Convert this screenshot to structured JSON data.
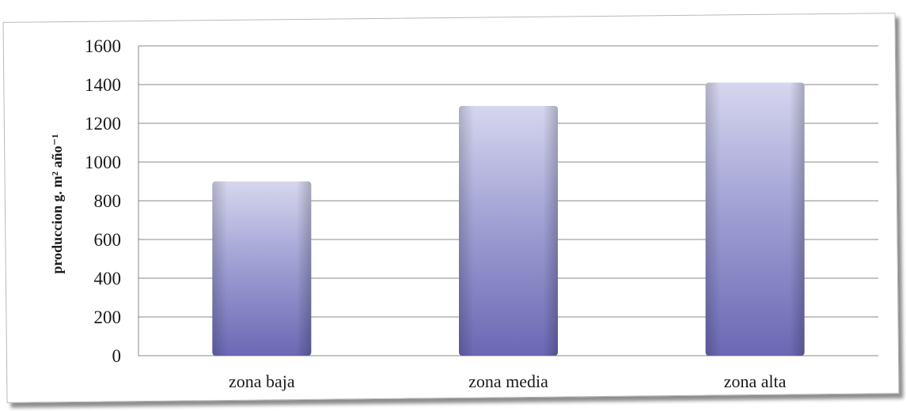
{
  "chart_data": {
    "type": "bar",
    "categories": [
      "zona baja",
      "zona media",
      "zona alta"
    ],
    "values": [
      900,
      1290,
      1410
    ],
    "ylabel": "produccion g. m² año⁻¹",
    "ylim": [
      0,
      1600
    ],
    "yticks": [
      0,
      200,
      400,
      600,
      800,
      1000,
      1200,
      1400,
      1600
    ],
    "grid": true,
    "legend": "none",
    "colors": {
      "bar_top": "#d6d6ef",
      "bar_mid": "#9c9cd2",
      "bar_bottom": "#6a68b4",
      "grid": "#8a8a8a"
    }
  }
}
